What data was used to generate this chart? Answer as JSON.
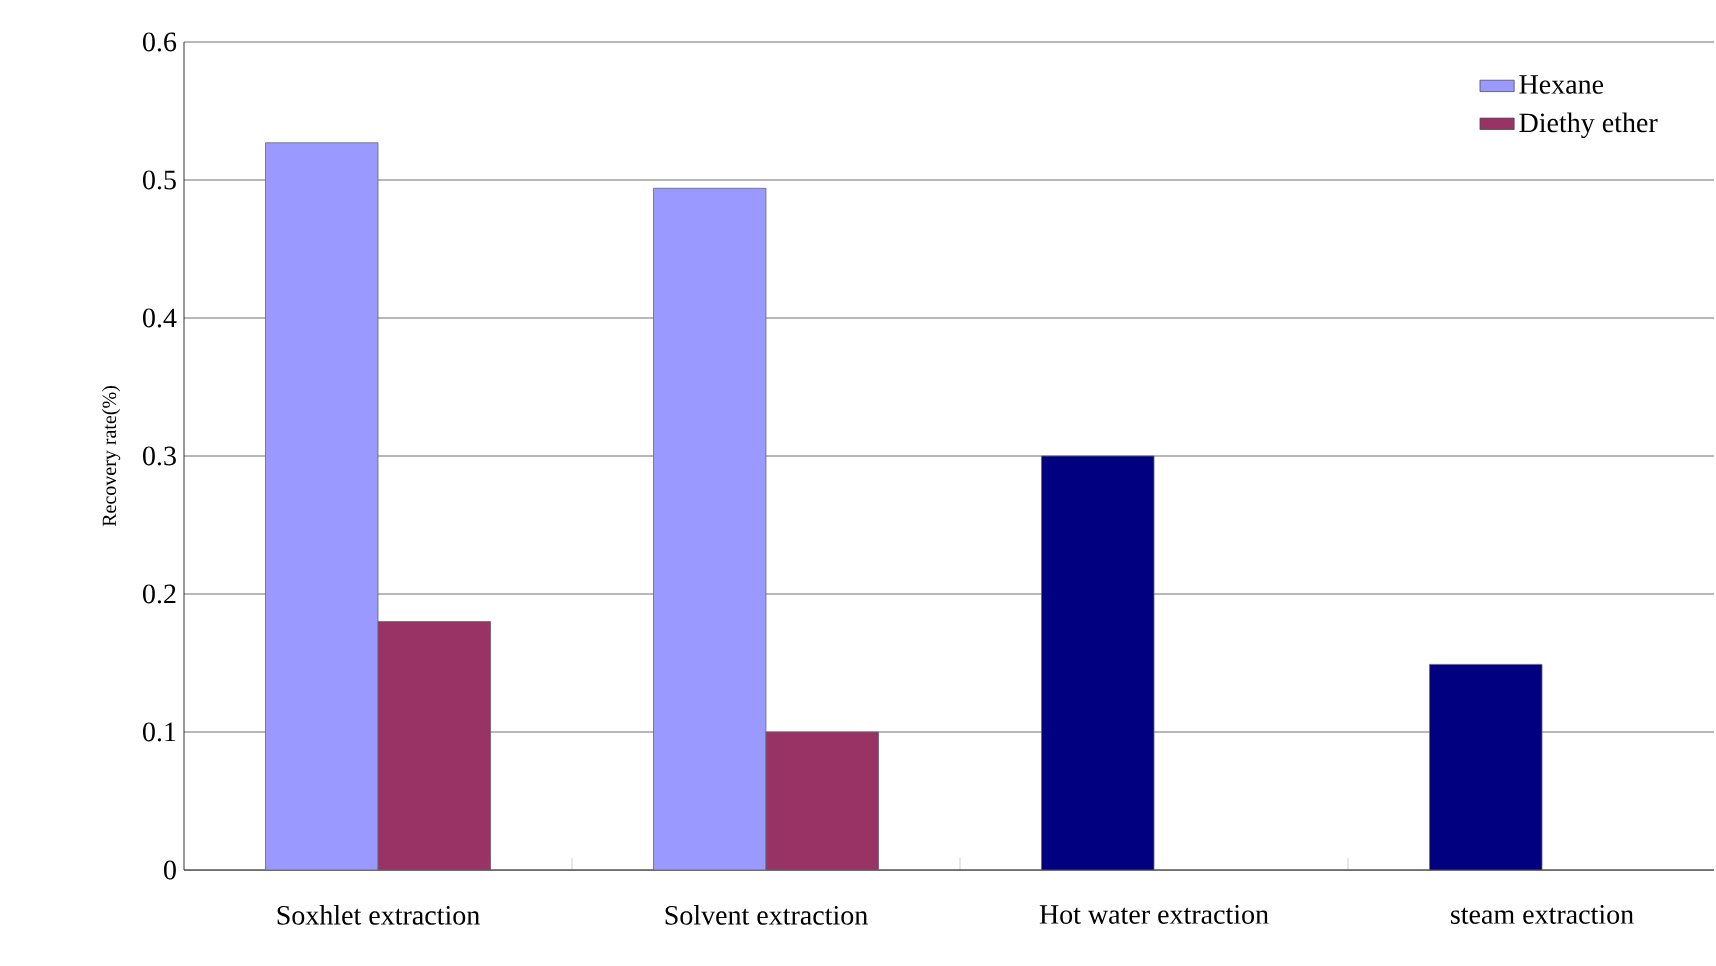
{
  "chart_data": {
    "type": "bar",
    "ylabel": "Recovery rate(%)",
    "categories": [
      "Soxhlet extraction",
      "Solvent extraction",
      "Hot water extraction",
      "steam extraction"
    ],
    "series": [
      {
        "name": "Hexane",
        "color": "#9999ff",
        "colors": [
          "#9999ff",
          "#9999ff",
          "#000080",
          "#000080"
        ],
        "values": [
          0.527,
          0.494,
          0.3,
          0.149
        ]
      },
      {
        "name": "Diethy ether",
        "color": "#993366",
        "values": [
          0.18,
          0.1,
          null,
          null
        ]
      }
    ],
    "ylim": [
      0,
      0.6
    ],
    "yticks": [
      0,
      0.1,
      0.2,
      0.3,
      0.4,
      0.5,
      0.6
    ],
    "grid": "y",
    "legend": "top right"
  }
}
